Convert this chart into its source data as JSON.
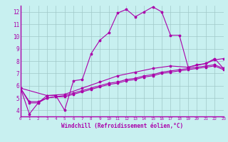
{
  "bg_color": "#c8f0f0",
  "grid_color": "#a0c8c8",
  "line_color": "#aa00aa",
  "xlabel": "Windchill (Refroidissement éolien,°C)",
  "xlim": [
    0,
    23
  ],
  "ylim": [
    3.5,
    12.5
  ],
  "yticks": [
    4,
    5,
    6,
    7,
    8,
    9,
    10,
    11,
    12
  ],
  "xticks": [
    0,
    1,
    2,
    3,
    4,
    5,
    6,
    7,
    8,
    9,
    10,
    11,
    12,
    13,
    14,
    15,
    16,
    17,
    18,
    19,
    20,
    21,
    22,
    23
  ],
  "series1": [
    [
      0,
      5.8
    ],
    [
      1,
      3.7
    ],
    [
      2,
      4.6
    ],
    [
      3,
      5.2
    ],
    [
      4,
      5.2
    ],
    [
      5,
      4.0
    ],
    [
      6,
      6.4
    ],
    [
      7,
      6.5
    ],
    [
      8,
      8.6
    ],
    [
      9,
      9.7
    ],
    [
      10,
      10.3
    ],
    [
      11,
      11.9
    ],
    [
      12,
      12.2
    ],
    [
      13,
      11.6
    ],
    [
      14,
      12.0
    ],
    [
      15,
      12.4
    ],
    [
      16,
      12.0
    ],
    [
      17,
      10.1
    ],
    [
      18,
      10.1
    ],
    [
      19,
      7.5
    ],
    [
      20,
      7.7
    ],
    [
      21,
      7.8
    ],
    [
      22,
      8.2
    ],
    [
      23,
      7.4
    ]
  ],
  "series2": [
    [
      0,
      5.8
    ],
    [
      1,
      4.7
    ],
    [
      2,
      4.7
    ],
    [
      3,
      5.0
    ],
    [
      4,
      5.1
    ],
    [
      5,
      5.2
    ],
    [
      6,
      5.4
    ],
    [
      7,
      5.6
    ],
    [
      8,
      5.8
    ],
    [
      9,
      6.0
    ],
    [
      10,
      6.2
    ],
    [
      11,
      6.3
    ],
    [
      12,
      6.5
    ],
    [
      13,
      6.6
    ],
    [
      14,
      6.8
    ],
    [
      15,
      6.9
    ],
    [
      16,
      7.1
    ],
    [
      17,
      7.2
    ],
    [
      18,
      7.3
    ],
    [
      19,
      7.4
    ],
    [
      20,
      7.5
    ],
    [
      21,
      7.6
    ],
    [
      22,
      7.7
    ],
    [
      23,
      7.4
    ]
  ],
  "series3": [
    [
      0,
      5.8
    ],
    [
      1,
      4.6
    ],
    [
      2,
      4.6
    ],
    [
      3,
      5.0
    ],
    [
      4,
      5.1
    ],
    [
      5,
      5.1
    ],
    [
      6,
      5.3
    ],
    [
      7,
      5.5
    ],
    [
      8,
      5.7
    ],
    [
      9,
      5.9
    ],
    [
      10,
      6.1
    ],
    [
      11,
      6.2
    ],
    [
      12,
      6.4
    ],
    [
      13,
      6.5
    ],
    [
      14,
      6.7
    ],
    [
      15,
      6.8
    ],
    [
      16,
      7.0
    ],
    [
      17,
      7.1
    ],
    [
      18,
      7.2
    ],
    [
      19,
      7.3
    ],
    [
      20,
      7.4
    ],
    [
      21,
      7.5
    ],
    [
      22,
      7.6
    ],
    [
      23,
      7.3
    ]
  ],
  "series4": [
    [
      0,
      5.8
    ],
    [
      3,
      5.2
    ],
    [
      5,
      5.3
    ],
    [
      7,
      5.8
    ],
    [
      9,
      6.3
    ],
    [
      11,
      6.8
    ],
    [
      13,
      7.1
    ],
    [
      15,
      7.4
    ],
    [
      17,
      7.6
    ],
    [
      19,
      7.5
    ],
    [
      21,
      7.8
    ],
    [
      22,
      8.1
    ],
    [
      23,
      8.2
    ]
  ]
}
